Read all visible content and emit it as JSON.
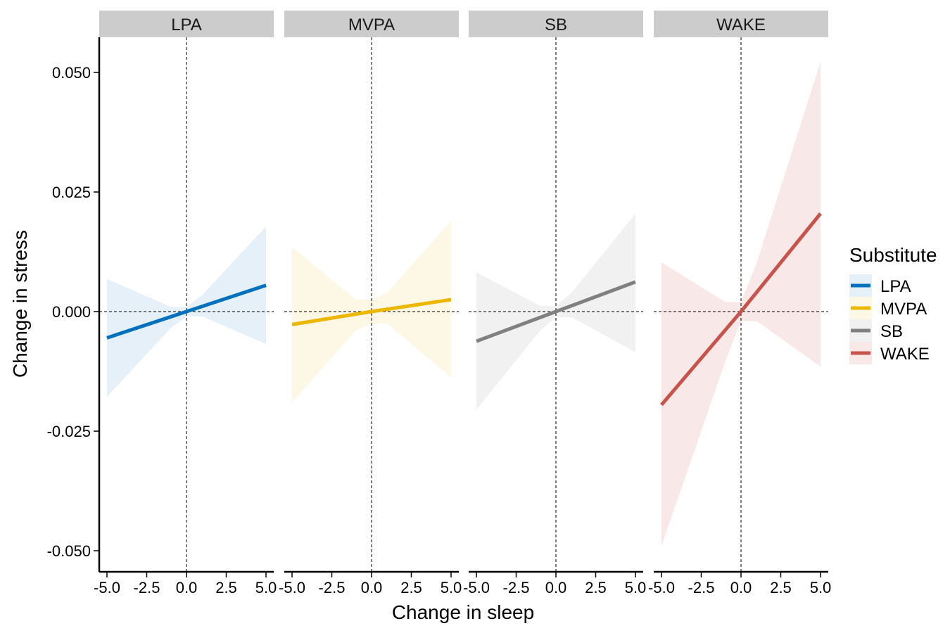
{
  "chart_data": {
    "type": "line",
    "xlabel": "Change in sleep",
    "ylabel": "Change in stress",
    "xlim": [
      -5.0,
      5.0
    ],
    "ylim": [
      -0.05,
      0.05
    ],
    "x_ticks": [
      "-5.0",
      "-2.5",
      "0.0",
      "2.5",
      "5.0"
    ],
    "y_ticks": [
      "0.050",
      "0.025",
      "0.000",
      "-0.025",
      "-0.050"
    ],
    "reference_lines": {
      "x": 0.0,
      "y": 0.0,
      "style": "dashed"
    },
    "grid": false,
    "legend": {
      "title": "Substitute",
      "placement": "right"
    },
    "panels": [
      {
        "name": "LPA",
        "color": "#0072BD",
        "band_color": "#e5f0f9",
        "line": {
          "x": [
            -5.0,
            0.0,
            5.0
          ],
          "y": [
            -0.0055,
            0.0,
            0.0055
          ]
        },
        "ci_upper": {
          "x": [
            -5.0,
            -1.0,
            0.0,
            1.0,
            5.0
          ],
          "y": [
            0.0068,
            0.001,
            0.001,
            0.0035,
            0.0178
          ]
        },
        "ci_lower": {
          "x": [
            -5.0,
            -1.0,
            0.0,
            1.0,
            5.0
          ],
          "y": [
            -0.0178,
            -0.0035,
            -0.001,
            -0.001,
            -0.0068
          ]
        }
      },
      {
        "name": "MVPA",
        "color": "#EDB700",
        "band_color": "#fdf8e5",
        "line": {
          "x": [
            -5.0,
            0.0,
            5.0
          ],
          "y": [
            -0.0027,
            0.0,
            0.0025
          ]
        },
        "ci_upper": {
          "x": [
            -5.0,
            -1.0,
            0.0,
            1.0,
            5.0
          ],
          "y": [
            0.0135,
            0.0025,
            0.0025,
            0.004,
            0.019
          ]
        },
        "ci_lower": {
          "x": [
            -5.0,
            -1.0,
            0.0,
            1.0,
            5.0
          ],
          "y": [
            -0.019,
            -0.004,
            -0.0025,
            -0.0025,
            -0.0138
          ]
        }
      },
      {
        "name": "SB",
        "color": "#808080",
        "band_color": "#f1f1f1",
        "line": {
          "x": [
            -5.0,
            0.0,
            5.0
          ],
          "y": [
            -0.0062,
            0.0,
            0.0062
          ]
        },
        "ci_upper": {
          "x": [
            -5.0,
            -1.0,
            0.0,
            1.0,
            5.0
          ],
          "y": [
            0.0082,
            0.0012,
            0.0012,
            0.004,
            0.0205
          ]
        },
        "ci_lower": {
          "x": [
            -5.0,
            -1.0,
            0.0,
            1.0,
            5.0
          ],
          "y": [
            -0.0205,
            -0.004,
            -0.0012,
            -0.0012,
            -0.0085
          ]
        }
      },
      {
        "name": "WAKE",
        "color": "#C8534A",
        "band_color": "#f8e9e8",
        "line": {
          "x": [
            -5.0,
            0.0,
            5.0
          ],
          "y": [
            -0.0195,
            0.0,
            0.0205
          ]
        },
        "ci_upper": {
          "x": [
            -5.0,
            -1.0,
            0.0,
            1.0,
            5.0
          ],
          "y": [
            0.0103,
            0.002,
            0.002,
            0.0103,
            0.0522
          ]
        },
        "ci_lower": {
          "x": [
            -5.0,
            -1.0,
            0.0,
            1.0,
            5.0
          ],
          "y": [
            -0.049,
            -0.0105,
            -0.002,
            -0.002,
            -0.0115
          ]
        }
      }
    ]
  }
}
